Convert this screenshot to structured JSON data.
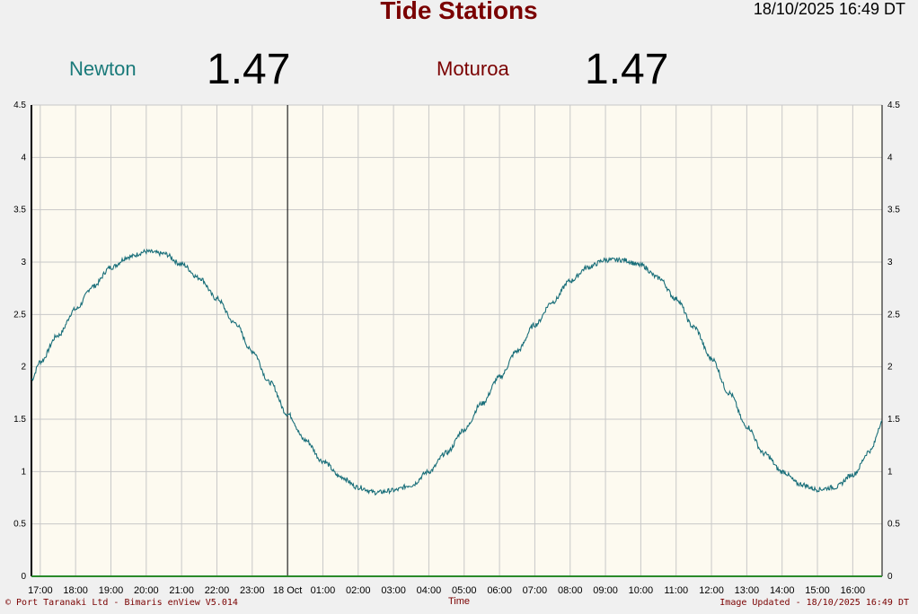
{
  "header": {
    "title": "Tide Stations",
    "datetime": "18/10/2025 16:49 DT"
  },
  "stations": [
    {
      "name": "Newton",
      "value": "1.47",
      "color": "#1a7a7a"
    },
    {
      "name": "Moturoa",
      "value": "1.47",
      "color": "#7a0000"
    }
  ],
  "footer": {
    "copyright": "© Port Taranaki Ltd - Bimaris enView V5.014",
    "updated": "Image Updated - 18/10/2025 16:49 DT"
  },
  "chart_data": {
    "type": "line",
    "xlabel": "Time",
    "ylabel": "",
    "ylim": [
      0,
      4.5
    ],
    "yticks": [
      "0",
      "0.5",
      "1",
      "1.5",
      "2",
      "2.5",
      "3",
      "3.5",
      "4",
      "4.5"
    ],
    "x_range_hours": [
      16.75,
      40.83
    ],
    "xticks": [
      "17:00",
      "18:00",
      "19:00",
      "20:00",
      "21:00",
      "22:00",
      "23:00",
      "18 Oct",
      "01:00",
      "02:00",
      "03:00",
      "04:00",
      "05:00",
      "06:00",
      "07:00",
      "08:00",
      "09:00",
      "10:00",
      "11:00",
      "12:00",
      "13:00",
      "14:00",
      "15:00",
      "16:00"
    ],
    "day_marker_hour": 24,
    "grid": true,
    "background_color": "#fdfaf0",
    "line_color": "#1a6f7a",
    "series": [
      {
        "name": "Newton",
        "x": [
          16.75,
          17.0,
          17.5,
          18.0,
          18.5,
          19.0,
          19.5,
          20.0,
          20.5,
          21.0,
          21.5,
          22.0,
          22.5,
          23.0,
          23.5,
          24.0,
          24.5,
          25.0,
          25.5,
          26.0,
          26.5,
          27.0,
          27.5,
          28.0,
          28.5,
          29.0,
          29.5,
          30.0,
          30.5,
          31.0,
          31.5,
          32.0,
          32.5,
          33.0,
          33.5,
          34.0,
          34.5,
          35.0,
          35.5,
          36.0,
          36.5,
          37.0,
          37.5,
          38.0,
          38.5,
          39.0,
          39.5,
          40.0,
          40.5,
          40.83
        ],
        "y": [
          1.88,
          2.05,
          2.3,
          2.55,
          2.77,
          2.95,
          3.05,
          3.1,
          3.08,
          2.98,
          2.85,
          2.65,
          2.42,
          2.15,
          1.85,
          1.55,
          1.3,
          1.1,
          0.95,
          0.85,
          0.8,
          0.82,
          0.87,
          1.0,
          1.18,
          1.4,
          1.65,
          1.9,
          2.15,
          2.4,
          2.62,
          2.82,
          2.95,
          3.02,
          3.02,
          2.97,
          2.85,
          2.65,
          2.38,
          2.08,
          1.75,
          1.43,
          1.17,
          1.0,
          0.88,
          0.83,
          0.85,
          0.97,
          1.2,
          1.47
        ]
      }
    ]
  }
}
